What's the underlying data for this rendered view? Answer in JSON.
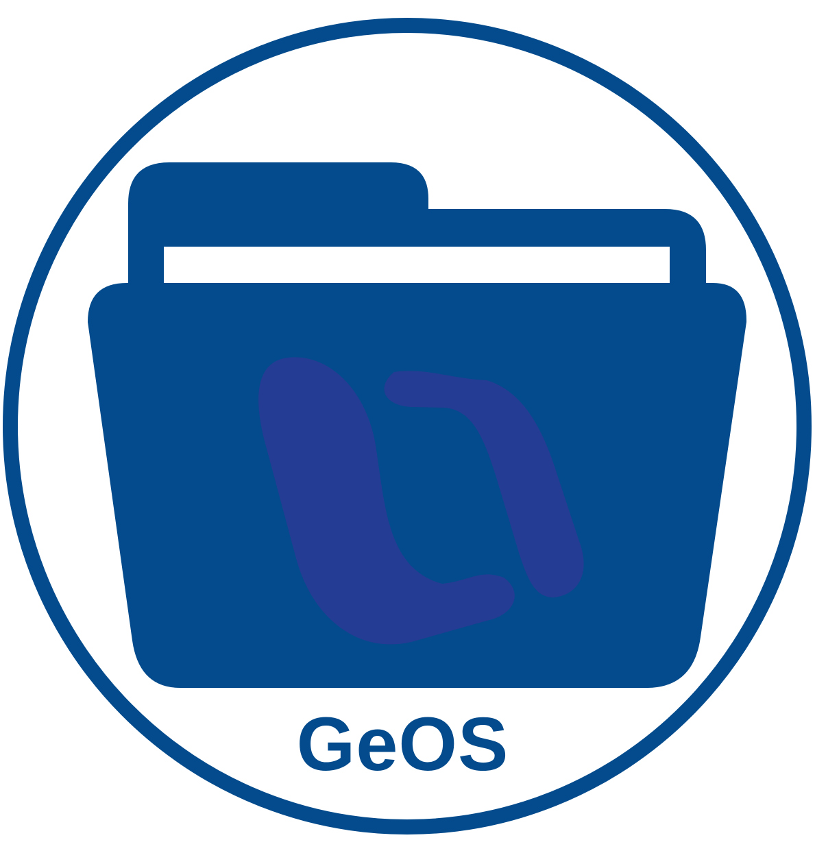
{
  "logo": {
    "brand_text": "GeOS",
    "icon": "folder-icon",
    "mark_icon": "swoosh-mark-icon",
    "colors": {
      "ring": "#034b8c",
      "folder": "#034b8c",
      "mark": "#253c94",
      "paper": "#ffffff",
      "background": "#ffffff"
    }
  }
}
